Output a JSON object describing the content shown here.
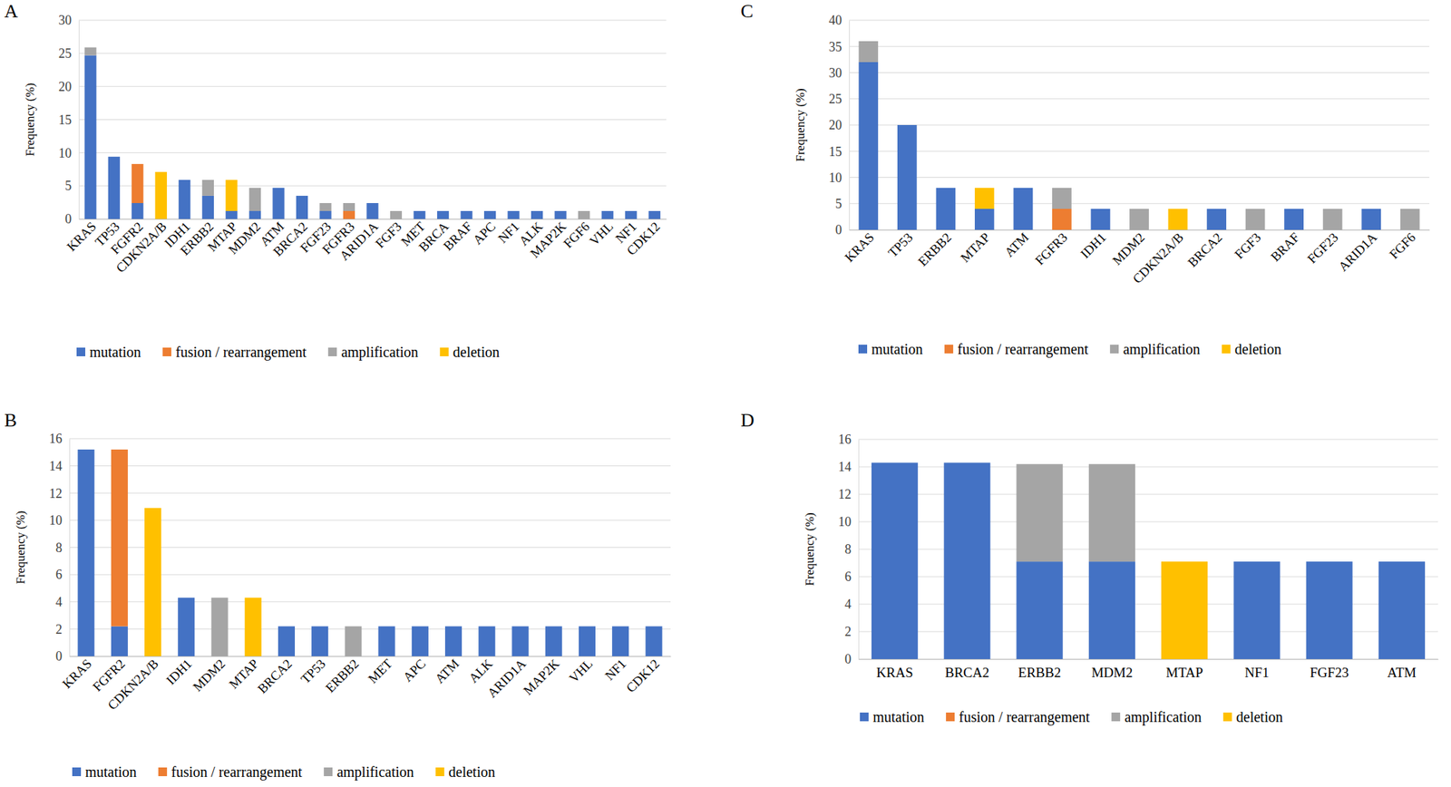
{
  "chart_data": [
    {
      "type": "bar",
      "title": "A",
      "y_label": "Frequency (%)",
      "stacked": true,
      "grid": true,
      "legend": "bottom",
      "ylim": [
        0,
        30
      ],
      "yticks": [
        0,
        5,
        10,
        15,
        20,
        25,
        30
      ],
      "categories": [
        "KRAS",
        "TP53",
        "FGFR2",
        "CDKN2A/B",
        "IDH1",
        "ERBB2",
        "MTAP",
        "MDM2",
        "ATM",
        "BRCA2",
        "FGF23",
        "FGFR3",
        "ARID1A",
        "FGF3",
        "MET",
        "BRCA",
        "BRAF",
        "APC",
        "NF1",
        "ALK",
        "MAP2K",
        "FGF6",
        "VHL",
        "NF1",
        "CDK12"
      ],
      "series": [
        {
          "name": "mutation",
          "color": "#4472c4",
          "values": [
            24.7,
            9.4,
            2.4,
            0,
            5.9,
            3.5,
            1.2,
            1.2,
            4.7,
            3.5,
            1.2,
            0,
            2.4,
            0,
            1.2,
            1.2,
            1.2,
            1.2,
            1.2,
            1.2,
            1.2,
            0,
            1.2,
            1.2,
            1.2
          ]
        },
        {
          "name": "fusion / rearrangement",
          "color": "#ed7d31",
          "values": [
            0,
            0,
            5.9,
            0,
            0,
            0,
            0,
            0,
            0,
            0,
            0,
            1.2,
            0,
            0,
            0,
            0,
            0,
            0,
            0,
            0,
            0,
            0,
            0,
            0,
            0
          ]
        },
        {
          "name": "amplification",
          "color": "#a5a5a5",
          "values": [
            1.2,
            0,
            0,
            0,
            0,
            2.4,
            0,
            3.5,
            0,
            0,
            1.2,
            1.2,
            0,
            1.2,
            0,
            0,
            0,
            0,
            0,
            0,
            0,
            1.2,
            0,
            0,
            0
          ]
        },
        {
          "name": "deletion",
          "color": "#ffc000",
          "values": [
            0,
            0,
            0,
            7.1,
            0,
            0,
            4.7,
            0,
            0,
            0,
            0,
            0,
            0,
            0,
            0,
            0,
            0,
            0,
            0,
            0,
            0,
            0,
            0,
            0,
            0
          ]
        }
      ]
    },
    {
      "type": "bar",
      "title": "B",
      "y_label": "Frequency (%)",
      "stacked": true,
      "grid": true,
      "legend": "bottom",
      "ylim": [
        0,
        16
      ],
      "yticks": [
        0,
        2,
        4,
        6,
        8,
        10,
        12,
        14,
        16
      ],
      "categories": [
        "KRAS",
        "FGFR2",
        "CDKN2A/B",
        "IDH1",
        "MDM2",
        "MTAP",
        "BRCA2",
        "TP53",
        "ERBB2",
        "MET",
        "APC",
        "ATM",
        "ALK",
        "ARID1A",
        "MAP2K",
        "VHL",
        "NF1",
        "CDK12"
      ],
      "series": [
        {
          "name": "mutation",
          "color": "#4472c4",
          "values": [
            15.2,
            2.2,
            0,
            4.3,
            0,
            0,
            2.2,
            2.2,
            0,
            2.2,
            2.2,
            2.2,
            2.2,
            2.2,
            2.2,
            2.2,
            2.2,
            2.2
          ]
        },
        {
          "name": "fusion / rearrangement",
          "color": "#ed7d31",
          "values": [
            0,
            13.0,
            0,
            0,
            0,
            0,
            0,
            0,
            0,
            0,
            0,
            0,
            0,
            0,
            0,
            0,
            0,
            0
          ]
        },
        {
          "name": "amplification",
          "color": "#a5a5a5",
          "values": [
            0,
            0,
            0,
            0,
            4.3,
            0,
            0,
            0,
            2.2,
            0,
            0,
            0,
            0,
            0,
            0,
            0,
            0,
            0
          ]
        },
        {
          "name": "deletion",
          "color": "#ffc000",
          "values": [
            0,
            0,
            10.9,
            0,
            0,
            4.3,
            0,
            0,
            0,
            0,
            0,
            0,
            0,
            0,
            0,
            0,
            0,
            0
          ]
        }
      ]
    },
    {
      "type": "bar",
      "title": "C",
      "y_label": "Frequency (%)",
      "stacked": true,
      "grid": true,
      "legend": "bottom",
      "ylim": [
        0,
        40
      ],
      "yticks": [
        0,
        5,
        10,
        15,
        20,
        25,
        30,
        35,
        40
      ],
      "categories": [
        "KRAS",
        "TP53",
        "ERBB2",
        "MTAP",
        "ATM",
        "FGFR3",
        "IDH1",
        "MDM2",
        "CDKN2A/B",
        "BRCA2",
        "FGF3",
        "BRAF",
        "FGF23",
        "ARID1A",
        "FGF6"
      ],
      "series": [
        {
          "name": "mutation",
          "color": "#4472c4",
          "values": [
            32,
            20,
            8,
            4,
            8,
            0,
            4,
            0,
            0,
            4,
            0,
            4,
            0,
            4,
            0
          ]
        },
        {
          "name": "fusion / rearrangement",
          "color": "#ed7d31",
          "values": [
            0,
            0,
            0,
            0,
            0,
            4,
            0,
            0,
            0,
            0,
            0,
            0,
            0,
            0,
            0
          ]
        },
        {
          "name": "amplification",
          "color": "#a5a5a5",
          "values": [
            4,
            0,
            0,
            0,
            0,
            4,
            0,
            4,
            0,
            0,
            4,
            0,
            4,
            0,
            4
          ]
        },
        {
          "name": "deletion",
          "color": "#ffc000",
          "values": [
            0,
            0,
            0,
            4,
            0,
            0,
            0,
            0,
            4,
            0,
            0,
            0,
            0,
            0,
            0
          ]
        }
      ]
    },
    {
      "type": "bar",
      "title": "D",
      "y_label": "Frequency (%)",
      "stacked": true,
      "grid": true,
      "legend": "bottom",
      "ylim": [
        0,
        16
      ],
      "yticks": [
        0,
        2,
        4,
        6,
        8,
        10,
        12,
        14,
        16
      ],
      "categories": [
        "KRAS",
        "BRCA2",
        "ERBB2",
        "MDM2",
        "MTAP",
        "NF1",
        "FGF23",
        "ATM"
      ],
      "series": [
        {
          "name": "mutation",
          "color": "#4472c4",
          "values": [
            14.3,
            14.3,
            7.1,
            7.1,
            0,
            7.1,
            7.1,
            7.1
          ]
        },
        {
          "name": "fusion / rearrangement",
          "color": "#ed7d31",
          "values": [
            0,
            0,
            0,
            0,
            0,
            0,
            0,
            0
          ]
        },
        {
          "name": "amplification",
          "color": "#a5a5a5",
          "values": [
            0,
            0,
            7.1,
            7.1,
            0,
            0,
            0,
            0
          ]
        },
        {
          "name": "deletion",
          "color": "#ffc000",
          "values": [
            0,
            0,
            0,
            0,
            7.1,
            0,
            0,
            0
          ]
        }
      ]
    }
  ]
}
